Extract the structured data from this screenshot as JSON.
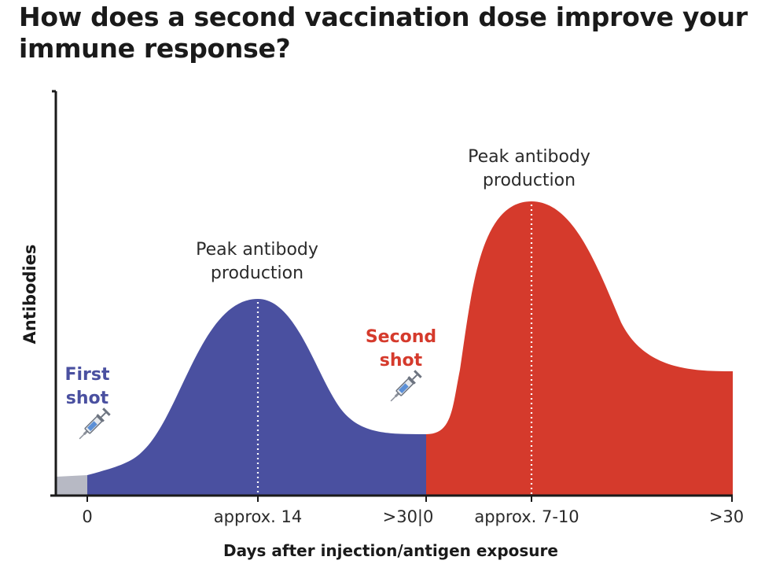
{
  "title": "How does a second vaccination dose improve your immune response?",
  "y_axis_label": "Antibodies",
  "x_axis_label": "Days after injection/antigen exposure",
  "x_ticks": [
    "0",
    "approx. 14",
    ">30|0",
    "approx. 7-10",
    ">30"
  ],
  "annotations": {
    "first_shot_line1": "First",
    "first_shot_line2": "shot",
    "second_shot_line1": "Second",
    "second_shot_line2": "shot",
    "peak1_line1": "Peak antibody",
    "peak1_line2": "production",
    "peak2_line1": "Peak antibody",
    "peak2_line2": "production"
  },
  "colors": {
    "baseline": "#b7b9c4",
    "first_response": "#4a50a0",
    "second_response": "#d53a2c",
    "first_shot_text": "#4a50a0",
    "second_shot_text": "#d53a2c",
    "axis": "#1a1a1a",
    "text": "#2a2a2a"
  },
  "icons": [
    "syringe-icon",
    "syringe-icon"
  ]
}
